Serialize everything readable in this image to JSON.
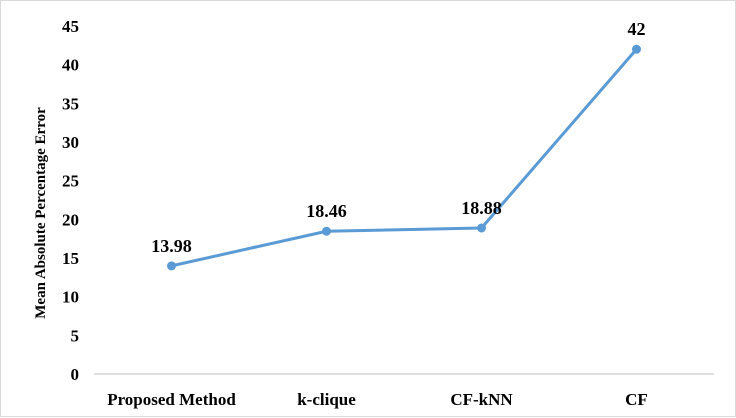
{
  "chart_data": {
    "type": "line",
    "title": "",
    "xlabel": "",
    "ylabel": "Mean Absolute Percentage Error",
    "categories": [
      "Proposed Method",
      "k-clique",
      "CF-kNN",
      "CF"
    ],
    "series": [
      {
        "values": [
          13.98,
          18.46,
          18.88,
          42
        ],
        "labels": [
          "13.98",
          "18.46",
          "18.88",
          "42"
        ]
      }
    ],
    "ylim": [
      0,
      45
    ],
    "yticks": [
      "0",
      "5",
      "10",
      "15",
      "20",
      "25",
      "30",
      "35",
      "40",
      "45"
    ],
    "grid": false,
    "legend": "none",
    "line_color": "#5b9bd5",
    "axis_color": "#bfbfbf"
  }
}
